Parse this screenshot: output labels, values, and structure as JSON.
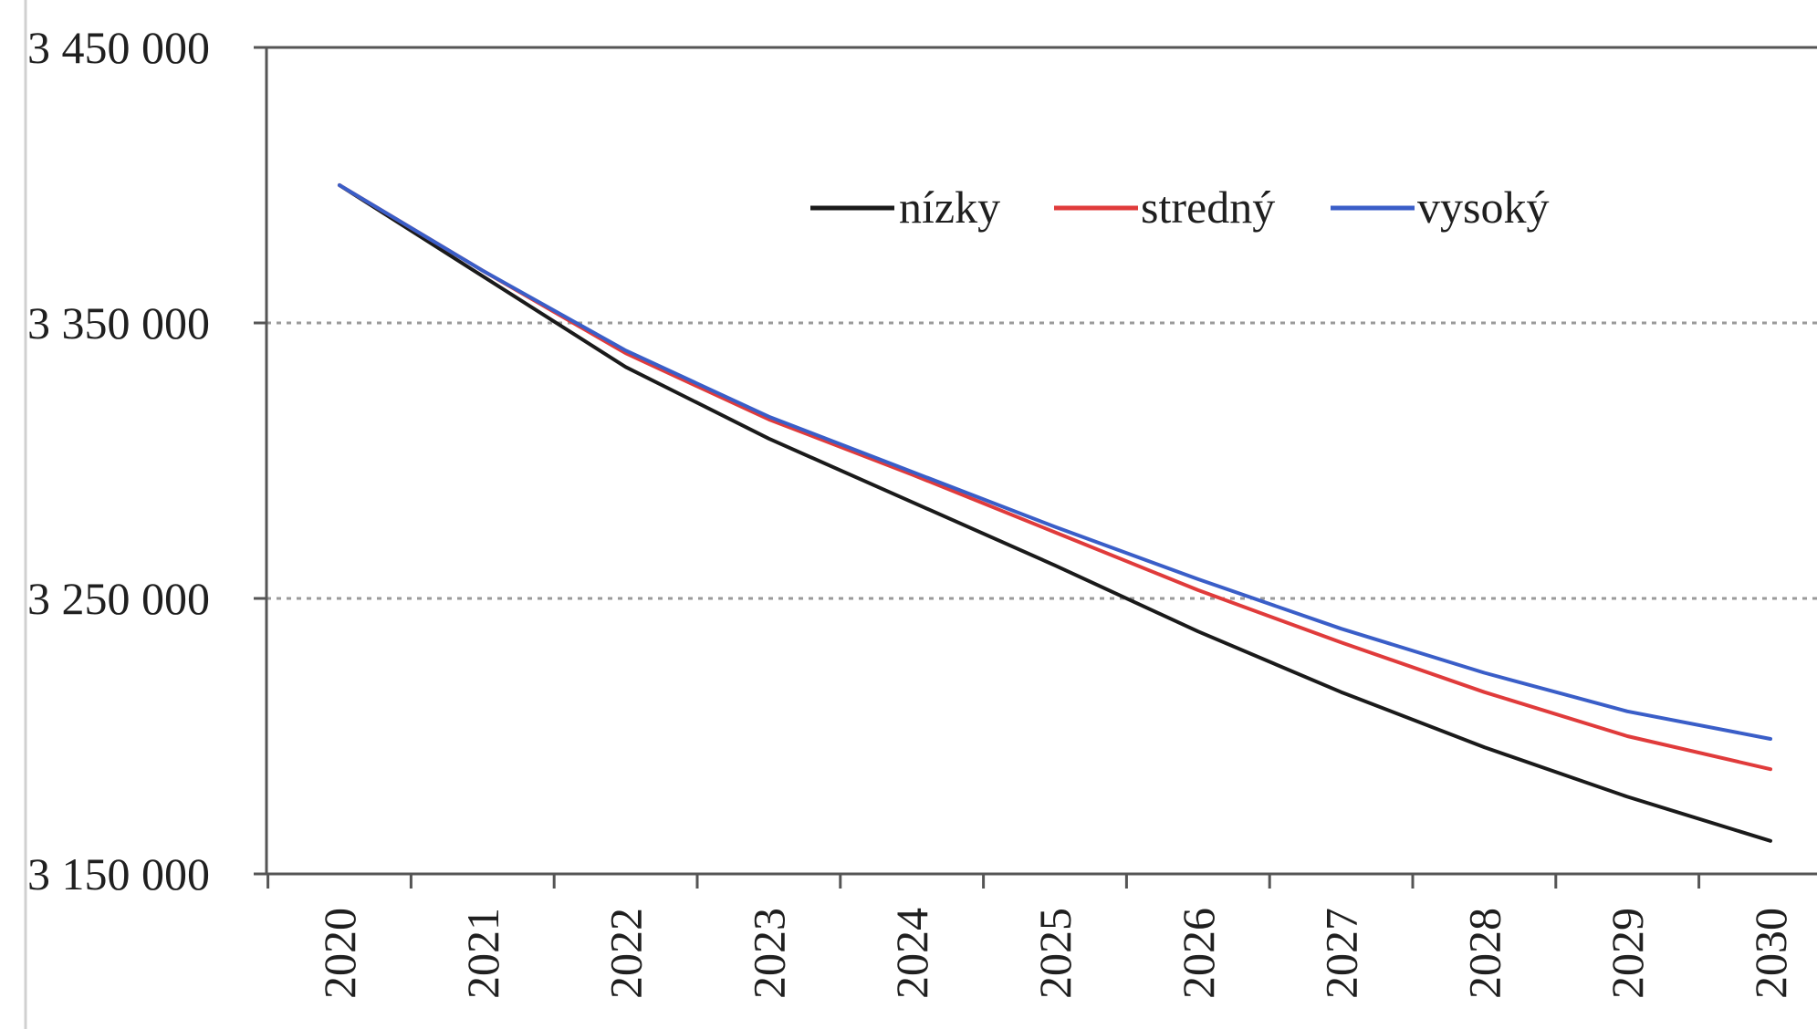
{
  "chart_data": {
    "type": "line",
    "x": [
      "2020",
      "2021",
      "2022",
      "2023",
      "2024",
      "2025",
      "2026",
      "2027",
      "2028",
      "2029",
      "2030"
    ],
    "ylim": [
      3150000,
      3450000
    ],
    "yticks": [
      3150000,
      3250000,
      3350000,
      3450000
    ],
    "ytick_labels": [
      "3 150 000",
      "3 250 000",
      "3 350 000",
      "3 450 000"
    ],
    "grid": "horizontal dashed at y ticks",
    "legend_position": "top-center",
    "series": [
      {
        "name": "nízky",
        "color": "#1a1a1a",
        "values": [
          3400000,
          3367000,
          3334000,
          3308000,
          3285000,
          3262000,
          3238000,
          3216000,
          3196000,
          3178000,
          3162000
        ]
      },
      {
        "name": "stredný",
        "color": "#e03b3b",
        "values": [
          3400000,
          3369000,
          3339000,
          3315000,
          3295000,
          3274000,
          3253000,
          3234000,
          3216000,
          3200000,
          3188000
        ]
      },
      {
        "name": "vysoký",
        "color": "#3a5ec8",
        "values": [
          3400000,
          3369000,
          3340000,
          3316000,
          3296000,
          3276000,
          3257000,
          3239000,
          3223000,
          3209000,
          3199000
        ]
      }
    ]
  }
}
